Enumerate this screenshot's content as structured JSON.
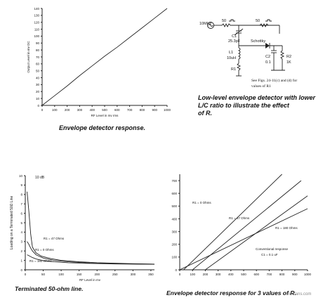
{
  "chart_data": [
    {
      "type": "line",
      "caption": "Envelope detector response.",
      "ylabel": "Output Level in mv DC",
      "xlabel": "RF Level in mv rms",
      "xlim": [
        0,
        1000
      ],
      "ylim": [
        0,
        140
      ],
      "x_ticks": [
        0,
        100,
        200,
        300,
        400,
        500,
        600,
        700,
        800,
        900,
        1000
      ],
      "y_ticks": [
        0,
        10,
        20,
        30,
        40,
        50,
        60,
        70,
        80,
        90,
        100,
        110,
        120,
        130,
        140
      ],
      "series": [
        {
          "x": [
            0,
            100,
            200,
            300,
            400,
            500,
            600,
            700,
            800,
            900,
            1000
          ],
          "y": [
            0,
            14,
            28,
            43,
            57,
            71,
            84,
            98,
            112,
            126,
            140
          ]
        }
      ]
    },
    {
      "type": "line",
      "caption": "Terminated 50-ohm line.",
      "ylabel": "Loading on a Terminated 50Ω Line",
      "xlabel": "RF Level in mv",
      "top_label": "10 dB",
      "xlim": [
        0,
        360
      ],
      "ylim": [
        0,
        10
      ],
      "x_ticks": [
        0,
        50,
        100,
        150,
        200,
        250,
        300,
        350
      ],
      "y_ticks": [
        0,
        1,
        2,
        3,
        4,
        5,
        6,
        7,
        8,
        9,
        10
      ],
      "annotations": [
        "R1 = 0 Ohms",
        "R1 = 47 Ohms",
        "R1 = 180 Ohms"
      ],
      "series": [
        {
          "x": [
            5,
            10,
            15,
            20,
            30,
            45,
            70,
            100,
            150,
            200,
            300,
            360
          ],
          "y": [
            8.3,
            6.2,
            3.8,
            2.4,
            1.8,
            1.45,
            1.2,
            1.0,
            0.85,
            0.75,
            0.65,
            0.6
          ]
        },
        {
          "x": [
            5,
            10,
            15,
            20,
            30,
            50,
            80,
            120,
            180,
            250,
            360
          ],
          "y": [
            3.0,
            2.7,
            2.3,
            2.0,
            1.6,
            1.25,
            1.0,
            0.85,
            0.72,
            0.65,
            0.6
          ]
        },
        {
          "x": [
            5,
            10,
            20,
            30,
            50,
            80,
            120,
            180,
            250,
            360
          ],
          "y": [
            1.6,
            1.5,
            1.3,
            1.15,
            0.98,
            0.85,
            0.75,
            0.68,
            0.62,
            0.58
          ]
        }
      ]
    },
    {
      "type": "line",
      "caption": "Envelope detector response for 3 values of R.",
      "xlim": [
        0,
        1000
      ],
      "ylim": [
        0,
        750
      ],
      "x_ticks": [
        0,
        100,
        200,
        300,
        400,
        500,
        600,
        700,
        800,
        900,
        1000
      ],
      "y_ticks": [
        0,
        100,
        200,
        300,
        400,
        500,
        600,
        700
      ],
      "annotations": [
        "R1 = 0 Ohms",
        "R1 = 47 Ohms",
        "R1 = 180 Ohms",
        "Conventional response",
        "C1 = 0.1 uF"
      ],
      "series": [
        {
          "x": [
            30,
            800
          ],
          "y": [
            0,
            750
          ]
        },
        {
          "x": [
            100,
            950
          ],
          "y": [
            0,
            700
          ]
        },
        {
          "x": [
            200,
            1000
          ],
          "y": [
            0,
            580
          ]
        },
        {
          "x": [
            0,
            1000
          ],
          "y": [
            0,
            480
          ]
        }
      ]
    }
  ],
  "schematic": {
    "caption": "Low-level envelope detector with lower L/C ratio to illustrate the effect of R.",
    "source_label": "10MHz",
    "r_in": "50",
    "r_out": "50",
    "c1_label": "C1",
    "c1_value": "25.3pF",
    "diode_label": "Schottky",
    "l1_label": "L1",
    "l1_value": "10uH",
    "r1_label": "R1",
    "c2_label": "C2",
    "c2_value": "0.1",
    "r2_label": "R2",
    "r2_value": "1K",
    "note_line1": "See Figs. 24-11(c) and (d) for",
    "note_line2": "values of R1"
  },
  "watermark": "elecfans.com"
}
